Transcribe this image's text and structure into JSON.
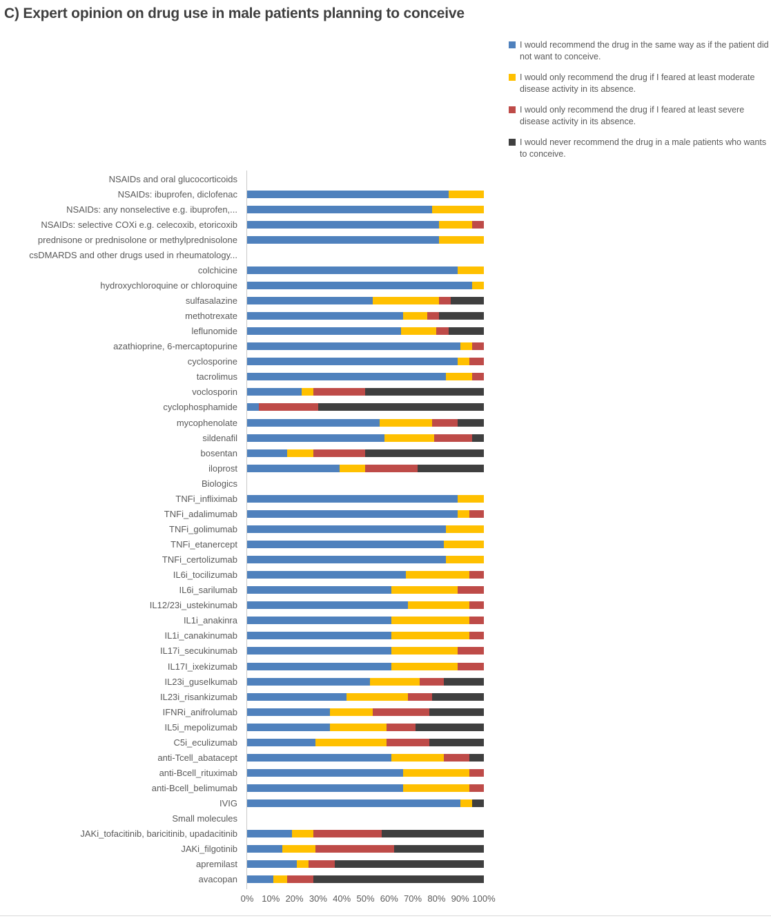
{
  "title": "C) Expert opinion on drug use in male patients planning to conceive",
  "colors": {
    "blue": "#4F81BD",
    "yellow": "#FFC000",
    "red": "#BE4B48",
    "black": "#3F3F3F"
  },
  "legend": [
    {
      "key": "blue",
      "label": "I would recommend the drug in the same way as if the patient did not want to conceive."
    },
    {
      "key": "yellow",
      "label": "I would only recommend the drug if I feared at least moderate disease activity in its absence."
    },
    {
      "key": "red",
      "label": "I would only recommend the drug if I feared at least severe disease activity in its absence."
    },
    {
      "key": "black",
      "label": "I would never recommend the drug in a male patients who wants to conceive."
    }
  ],
  "chart_data": {
    "type": "bar",
    "stacked": true,
    "orientation": "horizontal",
    "unit": "percent",
    "xlim": [
      0,
      100
    ],
    "x_ticks": [
      "0%",
      "10%",
      "20%",
      "30%",
      "40%",
      "50%",
      "60%",
      "70%",
      "80%",
      "90%",
      "100%"
    ],
    "legend_position": "top-right",
    "series_names": [
      "I would recommend the drug in the same way as if the patient did not want to conceive.",
      "I would only recommend the drug if I feared at least moderate disease activity in its absence.",
      "I would only recommend the drug if I feared at least severe disease activity in its absence.",
      "I would never recommend the drug in a male patients who wants to conceive."
    ],
    "rows": [
      {
        "label": "NSAIDs and oral glucocorticoids",
        "header": true,
        "values": null
      },
      {
        "label": "NSAIDs: ibuprofen, diclofenac",
        "values": [
          85,
          15,
          0,
          0
        ]
      },
      {
        "label": "NSAIDs: any nonselective e.g. ibuprofen,...",
        "values": [
          78,
          22,
          0,
          0
        ]
      },
      {
        "label": "NSAIDs: selective COXi e.g. celecoxib, etoricoxib",
        "values": [
          81,
          14,
          5,
          0
        ]
      },
      {
        "label": "prednisone or prednisolone or methylprednisolone",
        "values": [
          81,
          19,
          0,
          0
        ]
      },
      {
        "label": "csDMARDS and other drugs used in rheumatology...",
        "header": true,
        "values": null
      },
      {
        "label": "colchicine",
        "values": [
          89,
          11,
          0,
          0
        ]
      },
      {
        "label": "hydroxychloroquine or chloroquine",
        "values": [
          95,
          5,
          0,
          0
        ]
      },
      {
        "label": "sulfasalazine",
        "values": [
          53,
          28,
          5,
          14
        ]
      },
      {
        "label": "methotrexate",
        "values": [
          66,
          10,
          5,
          19
        ]
      },
      {
        "label": "leflunomide",
        "values": [
          65,
          15,
          5,
          15
        ]
      },
      {
        "label": "azathioprine, 6-mercaptopurine",
        "values": [
          90,
          5,
          5,
          0
        ]
      },
      {
        "label": "cyclosporine",
        "values": [
          89,
          5,
          6,
          0
        ]
      },
      {
        "label": "tacrolimus",
        "values": [
          84,
          11,
          5,
          0
        ]
      },
      {
        "label": "voclosporin",
        "values": [
          23,
          5,
          22,
          50
        ]
      },
      {
        "label": "cyclophosphamide",
        "values": [
          5,
          0,
          25,
          70
        ]
      },
      {
        "label": "mycophenolate",
        "values": [
          56,
          22,
          11,
          11
        ]
      },
      {
        "label": "sildenafil",
        "values": [
          58,
          21,
          16,
          5
        ]
      },
      {
        "label": "bosentan",
        "values": [
          17,
          11,
          22,
          50
        ]
      },
      {
        "label": "iloprost",
        "values": [
          39,
          11,
          22,
          28
        ]
      },
      {
        "label": "Biologics",
        "header": true,
        "values": null
      },
      {
        "label": "TNFi_infliximab",
        "values": [
          89,
          11,
          0,
          0
        ]
      },
      {
        "label": "TNFi_adalimumab",
        "values": [
          89,
          5,
          6,
          0
        ]
      },
      {
        "label": "TNFi_golimumab",
        "values": [
          84,
          16,
          0,
          0
        ]
      },
      {
        "label": "TNFi_etanercept",
        "values": [
          83,
          17,
          0,
          0
        ]
      },
      {
        "label": "TNFi_certolizumab",
        "values": [
          84,
          16,
          0,
          0
        ]
      },
      {
        "label": "IL6i_tocilizumab",
        "values": [
          67,
          27,
          6,
          0
        ]
      },
      {
        "label": "IL6i_sarilumab",
        "values": [
          61,
          28,
          11,
          0
        ]
      },
      {
        "label": "IL12/23i_ustekinumab",
        "values": [
          68,
          26,
          6,
          0
        ]
      },
      {
        "label": "IL1i_anakinra",
        "values": [
          61,
          33,
          6,
          0
        ]
      },
      {
        "label": "IL1i_canakinumab",
        "values": [
          61,
          33,
          6,
          0
        ]
      },
      {
        "label": "IL17i_secukinumab",
        "values": [
          61,
          28,
          11,
          0
        ]
      },
      {
        "label": "IL17I_ixekizumab",
        "values": [
          61,
          28,
          11,
          0
        ]
      },
      {
        "label": "IL23i_guselkumab",
        "values": [
          52,
          21,
          10,
          17
        ]
      },
      {
        "label": "IL23i_risankizumab",
        "values": [
          42,
          26,
          10,
          22
        ]
      },
      {
        "label": "IFNRi_anifrolumab",
        "values": [
          35,
          18,
          24,
          23
        ]
      },
      {
        "label": "IL5i_mepolizumab",
        "values": [
          35,
          24,
          12,
          29
        ]
      },
      {
        "label": "C5i_eculizumab",
        "values": [
          29,
          30,
          18,
          23
        ]
      },
      {
        "label": "anti-Tcell_abatacept",
        "values": [
          61,
          22,
          11,
          6
        ]
      },
      {
        "label": "anti-Bcell_rituximab",
        "values": [
          66,
          28,
          6,
          0
        ]
      },
      {
        "label": "anti-Bcell_belimumab",
        "values": [
          66,
          28,
          6,
          0
        ]
      },
      {
        "label": "IVIG",
        "values": [
          90,
          5,
          0,
          5
        ]
      },
      {
        "label": "Small molecules",
        "header": true,
        "values": null
      },
      {
        "label": "JAKi_tofacitinib, baricitinib, upadacitinib",
        "values": [
          19,
          9,
          29,
          43
        ]
      },
      {
        "label": "JAKi_filgotinib",
        "values": [
          15,
          14,
          33,
          38
        ]
      },
      {
        "label": "apremilast",
        "values": [
          21,
          5,
          11,
          63
        ]
      },
      {
        "label": "avacopan",
        "values": [
          11,
          6,
          11,
          72
        ]
      }
    ]
  }
}
